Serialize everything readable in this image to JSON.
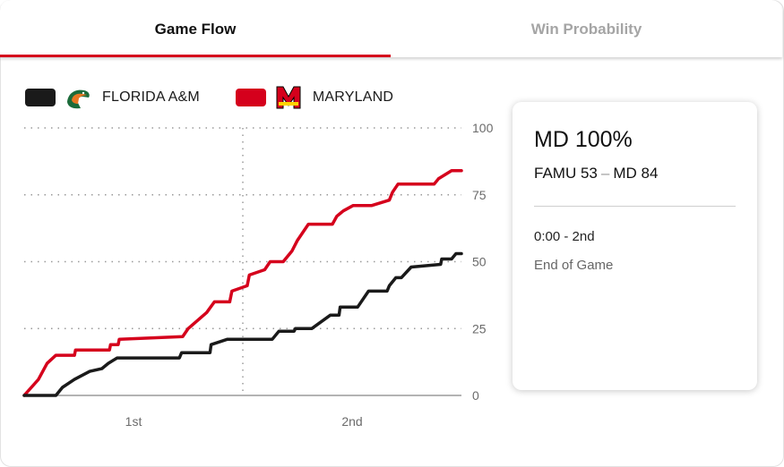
{
  "tabs": [
    {
      "label": "Game Flow",
      "active": true
    },
    {
      "label": "Win Probability",
      "active": false
    }
  ],
  "legend": [
    {
      "team": "FLORIDA A&M",
      "color": "#1a1a1a",
      "logo": "famu-rattler-logo"
    },
    {
      "team": "MARYLAND",
      "color": "#d5001c",
      "logo": "maryland-m-logo"
    }
  ],
  "card": {
    "probability": "MD 100%",
    "away_abbr": "FAMU",
    "away_score": "53",
    "home_abbr": "MD",
    "home_score": "84",
    "clock": "0:00 - 2nd",
    "status": "End of Game"
  },
  "chart_data": {
    "type": "line",
    "xlabel": "",
    "ylabel": "",
    "x_unit": "game minutes",
    "xlim": [
      0,
      40
    ],
    "ylim": [
      0,
      100
    ],
    "yticks": [
      0,
      25,
      50,
      75,
      100
    ],
    "xtick_labels": [
      {
        "label": "1st",
        "at": 10
      },
      {
        "label": "2nd",
        "at": 30
      }
    ],
    "halftime": 20,
    "grid": true,
    "series": [
      {
        "name": "MARYLAND",
        "color": "#d5001c",
        "points": [
          [
            0,
            0
          ],
          [
            1.3,
            6
          ],
          [
            2.1,
            12
          ],
          [
            2.9,
            15
          ],
          [
            4.6,
            15
          ],
          [
            4.7,
            17
          ],
          [
            7.8,
            17
          ],
          [
            7.9,
            19
          ],
          [
            8.6,
            19
          ],
          [
            8.7,
            21
          ],
          [
            14.5,
            22
          ],
          [
            15,
            25
          ],
          [
            16.7,
            31
          ],
          [
            17.4,
            35
          ],
          [
            18.8,
            35
          ],
          [
            19,
            39
          ],
          [
            20.4,
            41
          ],
          [
            20.6,
            45
          ],
          [
            22,
            47
          ],
          [
            22.5,
            50
          ],
          [
            23.7,
            50
          ],
          [
            24.5,
            54
          ],
          [
            25,
            58
          ],
          [
            26,
            64
          ],
          [
            28.2,
            64
          ],
          [
            28.6,
            67
          ],
          [
            29.2,
            69
          ],
          [
            30.1,
            71
          ],
          [
            31.8,
            71
          ],
          [
            33.4,
            73
          ],
          [
            33.7,
            76
          ],
          [
            34.2,
            79
          ],
          [
            37.5,
            79
          ],
          [
            37.9,
            81
          ],
          [
            39.1,
            84
          ],
          [
            40,
            84
          ]
        ]
      },
      {
        "name": "FLORIDA A&M",
        "color": "#1a1a1a",
        "points": [
          [
            0,
            0
          ],
          [
            2.9,
            0
          ],
          [
            3.5,
            3
          ],
          [
            4.6,
            6
          ],
          [
            6,
            9
          ],
          [
            7.1,
            10
          ],
          [
            7.7,
            12
          ],
          [
            8.5,
            14
          ],
          [
            14.2,
            14
          ],
          [
            14.4,
            16
          ],
          [
            17,
            16
          ],
          [
            17.1,
            19
          ],
          [
            18.6,
            21
          ],
          [
            22.7,
            21
          ],
          [
            23.3,
            24
          ],
          [
            24.7,
            24
          ],
          [
            24.8,
            25
          ],
          [
            26.3,
            25
          ],
          [
            28,
            30
          ],
          [
            28.8,
            30
          ],
          [
            28.9,
            33
          ],
          [
            30.5,
            33
          ],
          [
            31.5,
            39
          ],
          [
            33.2,
            39
          ],
          [
            33.4,
            41
          ],
          [
            34,
            44
          ],
          [
            34.5,
            44
          ],
          [
            35.4,
            48
          ],
          [
            38.1,
            49
          ],
          [
            38.2,
            51
          ],
          [
            39.1,
            51
          ],
          [
            39.5,
            53
          ],
          [
            40,
            53
          ]
        ]
      }
    ]
  }
}
